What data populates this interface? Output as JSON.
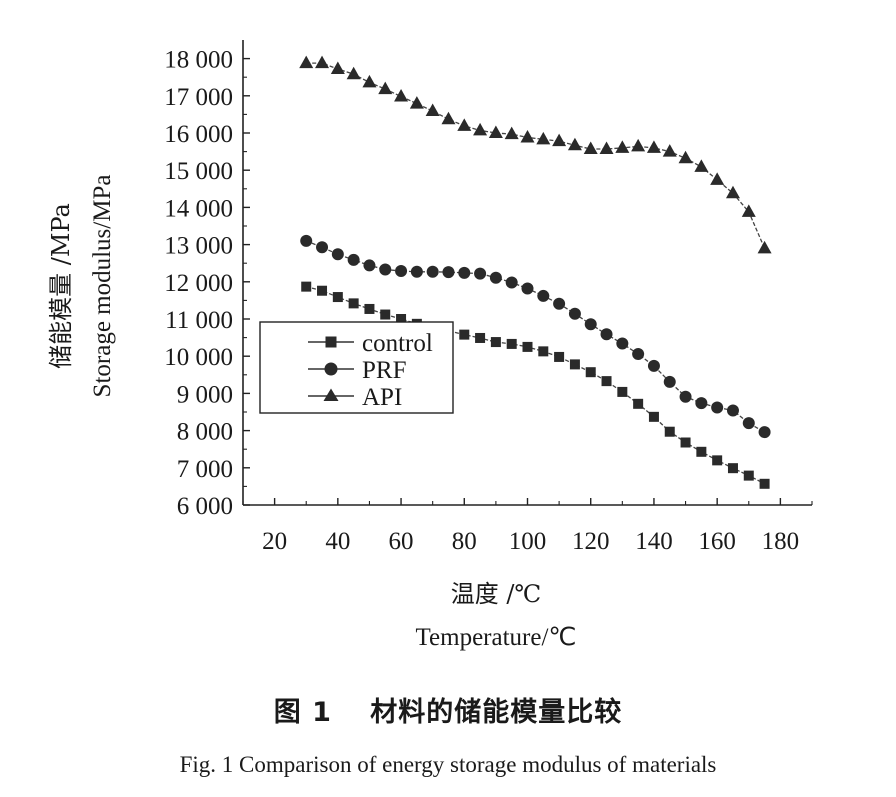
{
  "chart_data": {
    "type": "line",
    "ylabel_zh": "储能模量 /MPa",
    "ylabel_en": "Storage modulus/MPa",
    "xlabel_zh": "温度 /℃",
    "xlabel_en": "Temperature/℃",
    "xlim": [
      10,
      190
    ],
    "ylim": [
      6000,
      18500
    ],
    "x_ticks": [
      20,
      40,
      60,
      80,
      100,
      120,
      140,
      160,
      180
    ],
    "x_tick_labels": [
      "20",
      "40",
      "60",
      "80",
      "100",
      "120",
      "140",
      "160",
      "180"
    ],
    "y_ticks": [
      6000,
      7000,
      8000,
      9000,
      10000,
      11000,
      12000,
      13000,
      14000,
      15000,
      16000,
      17000,
      18000
    ],
    "y_tick_labels": [
      "6 000",
      "7 000",
      "8 000",
      "9 000",
      "10 000",
      "11 000",
      "12 000",
      "13 000",
      "14 000",
      "15 000",
      "16 000",
      "17 000",
      "18 000"
    ],
    "legend_position": "center-left",
    "x": [
      30,
      35,
      40,
      45,
      50,
      55,
      60,
      65,
      70,
      75,
      80,
      85,
      90,
      95,
      100,
      105,
      110,
      115,
      120,
      125,
      130,
      135,
      140,
      145,
      150,
      155,
      160,
      165,
      170,
      175
    ],
    "series": [
      {
        "name": "control",
        "marker": "square",
        "values": [
          11870,
          11760,
          11590,
          11420,
          11270,
          11120,
          11000,
          10870,
          10750,
          10680,
          10580,
          10490,
          10380,
          10330,
          10250,
          10130,
          9980,
          9780,
          9570,
          9330,
          9040,
          8720,
          8370,
          7970,
          7680,
          7430,
          7200,
          6990,
          6790,
          6570
        ]
      },
      {
        "name": "PRF",
        "marker": "circle",
        "values": [
          13100,
          12930,
          12740,
          12590,
          12440,
          12330,
          12290,
          12270,
          12270,
          12260,
          12240,
          12220,
          12110,
          11980,
          11820,
          11620,
          11410,
          11140,
          10860,
          10590,
          10340,
          10060,
          9740,
          9310,
          8910,
          8740,
          8620,
          8540,
          8200,
          7960
        ]
      },
      {
        "name": "API",
        "marker": "triangle",
        "values": [
          17880,
          17880,
          17720,
          17580,
          17360,
          17180,
          16980,
          16790,
          16590,
          16370,
          16190,
          16070,
          16000,
          15970,
          15880,
          15830,
          15780,
          15670,
          15570,
          15570,
          15600,
          15640,
          15600,
          15500,
          15320,
          15090,
          14740,
          14380,
          13880,
          12900
        ]
      }
    ]
  },
  "caption": {
    "zh": "图 1　 材料的储能模量比较",
    "en": "Fig. 1 Comparison of energy storage modulus of materials"
  }
}
